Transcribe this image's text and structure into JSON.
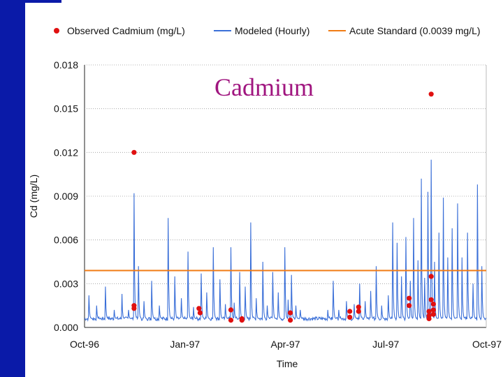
{
  "slide": {
    "overlay_title": "Cadmium"
  },
  "chart_data": {
    "type": "line",
    "xlabel": "Time",
    "ylabel": "Cd (mg/L)",
    "x_ticks": [
      "Oct-96",
      "Jan-97",
      "Apr-97",
      "Jul-97",
      "Oct-97"
    ],
    "x_range": [
      "1996-10-01",
      "1997-10-01"
    ],
    "y_ticks": [
      "0.000",
      "0.003",
      "0.006",
      "0.009",
      "0.012",
      "0.015",
      "0.018"
    ],
    "ylim": [
      0,
      0.018
    ],
    "grid": "horizontal dotted",
    "legend": "top",
    "series": [
      {
        "name": "Observed Cadmium (mg/L)",
        "kind": "scatter",
        "color": "#e01010",
        "points": [
          [
            "1996-11-15",
            0.012
          ],
          [
            "1996-11-15",
            0.0015
          ],
          [
            "1996-11-15",
            0.0013
          ],
          [
            "1997-01-13",
            0.0013
          ],
          [
            "1997-01-14",
            0.001
          ],
          [
            "1997-02-11",
            0.0012
          ],
          [
            "1997-02-11",
            0.0005
          ],
          [
            "1997-02-21",
            0.0006
          ],
          [
            "1997-02-21",
            0.0005
          ],
          [
            "1997-04-06",
            0.001
          ],
          [
            "1997-04-06",
            0.0005
          ],
          [
            "1997-05-30",
            0.0011
          ],
          [
            "1997-05-30",
            0.0007
          ],
          [
            "1997-06-07",
            0.0014
          ],
          [
            "1997-06-07",
            0.0011
          ],
          [
            "1997-07-23",
            0.002
          ],
          [
            "1997-07-23",
            0.0015
          ],
          [
            "1997-08-10",
            0.0011
          ],
          [
            "1997-08-10",
            0.0008
          ],
          [
            "1997-08-10",
            0.0006
          ],
          [
            "1997-08-12",
            0.016
          ],
          [
            "1997-08-12",
            0.0035
          ],
          [
            "1997-08-12",
            0.0019
          ],
          [
            "1997-08-14",
            0.0016
          ],
          [
            "1997-08-14",
            0.0012
          ],
          [
            "1997-08-14",
            0.0009
          ]
        ]
      },
      {
        "name": "Modeled (Hourly)",
        "kind": "line",
        "color": "#3a6fd8",
        "baseline": 0.0006,
        "spikes": [
          [
            "1996-10-05",
            0.0022
          ],
          [
            "1996-10-12",
            0.0015
          ],
          [
            "1996-10-20",
            0.0028
          ],
          [
            "1996-10-28",
            0.0012
          ],
          [
            "1996-11-04",
            0.0023
          ],
          [
            "1996-11-10",
            0.0012
          ],
          [
            "1996-11-15",
            0.0092
          ],
          [
            "1996-11-19",
            0.0042
          ],
          [
            "1996-11-24",
            0.0018
          ],
          [
            "1996-12-01",
            0.0032
          ],
          [
            "1996-12-08",
            0.0015
          ],
          [
            "1996-12-16",
            0.0075
          ],
          [
            "1996-12-22",
            0.0035
          ],
          [
            "1996-12-28",
            0.002
          ],
          [
            "1997-01-03",
            0.0052
          ],
          [
            "1997-01-08",
            0.0014
          ],
          [
            "1997-01-15",
            0.0037
          ],
          [
            "1997-01-20",
            0.0024
          ],
          [
            "1997-01-26",
            0.0055
          ],
          [
            "1997-02-01",
            0.0033
          ],
          [
            "1997-02-06",
            0.0016
          ],
          [
            "1997-02-11",
            0.0055
          ],
          [
            "1997-02-14",
            0.0017
          ],
          [
            "1997-02-19",
            0.0038
          ],
          [
            "1997-02-24",
            0.0028
          ],
          [
            "1997-03-01",
            0.0072
          ],
          [
            "1997-03-06",
            0.002
          ],
          [
            "1997-03-12",
            0.0045
          ],
          [
            "1997-03-16",
            0.0015
          ],
          [
            "1997-03-21",
            0.0038
          ],
          [
            "1997-03-26",
            0.0024
          ],
          [
            "1997-04-01",
            0.0055
          ],
          [
            "1997-04-04",
            0.0019
          ],
          [
            "1997-04-07",
            0.0036
          ],
          [
            "1997-04-11",
            0.0015
          ],
          [
            "1997-04-15",
            0.0012
          ],
          [
            "1997-05-10",
            0.0012
          ],
          [
            "1997-05-15",
            0.0032
          ],
          [
            "1997-05-20",
            0.0012
          ],
          [
            "1997-05-27",
            0.0018
          ],
          [
            "1997-06-03",
            0.0016
          ],
          [
            "1997-06-08",
            0.003
          ],
          [
            "1997-06-13",
            0.0018
          ],
          [
            "1997-06-18",
            0.0025
          ],
          [
            "1997-06-23",
            0.0042
          ],
          [
            "1997-06-28",
            0.0015
          ],
          [
            "1997-07-04",
            0.0022
          ],
          [
            "1997-07-08",
            0.0072
          ],
          [
            "1997-07-12",
            0.0058
          ],
          [
            "1997-07-16",
            0.0035
          ],
          [
            "1997-07-20",
            0.0062
          ],
          [
            "1997-07-24",
            0.0032
          ],
          [
            "1997-07-27",
            0.0075
          ],
          [
            "1997-07-31",
            0.0046
          ],
          [
            "1997-08-03",
            0.0102
          ],
          [
            "1997-08-06",
            0.0034
          ],
          [
            "1997-08-09",
            0.0093
          ],
          [
            "1997-08-12",
            0.0115
          ],
          [
            "1997-08-15",
            0.0045
          ],
          [
            "1997-08-19",
            0.0065
          ],
          [
            "1997-08-23",
            0.0089
          ],
          [
            "1997-08-27",
            0.0048
          ],
          [
            "1997-08-31",
            0.0068
          ],
          [
            "1997-09-05",
            0.0085
          ],
          [
            "1997-09-09",
            0.0048
          ],
          [
            "1997-09-14",
            0.0065
          ],
          [
            "1997-09-19",
            0.003
          ],
          [
            "1997-09-23",
            0.0098
          ],
          [
            "1997-09-27",
            0.0042
          ]
        ]
      },
      {
        "name": "Acute Standard (0.0039 mg/L)",
        "kind": "hline",
        "color": "#f07b14",
        "value": 0.0039
      }
    ]
  }
}
